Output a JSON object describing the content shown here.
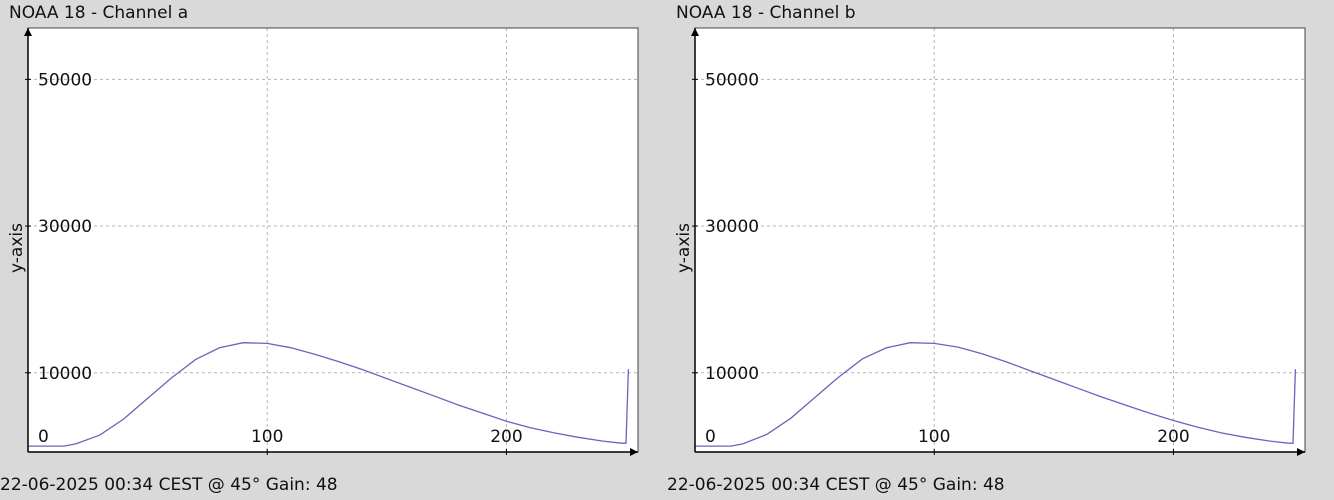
{
  "chart_data": [
    {
      "type": "line",
      "title": "NOAA 18 - Channel a",
      "ylabel": "y-axis",
      "xlabel": "",
      "footer": "22-06-2025 00:34 CEST @ 45° Gain: 48",
      "xlim": [
        0,
        255
      ],
      "ylim": [
        -800,
        57000
      ],
      "x_ticks": [
        100,
        200
      ],
      "x_tick_labels": [
        "100",
        "200"
      ],
      "y_ticks": [
        50000,
        30000,
        10000,
        0
      ],
      "y_tick_labels": [
        "50000",
        "30000",
        "10000",
        "0"
      ],
      "grid": true,
      "line_color": "#6666bb",
      "series": [
        {
          "x": [
            0,
            15,
            20,
            30,
            40,
            50,
            60,
            70,
            80,
            90,
            100,
            110,
            120,
            130,
            140,
            150,
            160,
            170,
            180,
            190,
            200,
            210,
            220,
            230,
            240,
            248,
            250,
            251
          ],
          "values": [
            0,
            0,
            300,
            1500,
            3700,
            6500,
            9300,
            11800,
            13400,
            14100,
            14000,
            13400,
            12500,
            11500,
            10400,
            9200,
            8000,
            6800,
            5600,
            4500,
            3400,
            2500,
            1800,
            1200,
            700,
            400,
            400,
            10500
          ]
        }
      ]
    },
    {
      "type": "line",
      "title": "NOAA 18 - Channel b",
      "ylabel": "y-axis",
      "xlabel": "",
      "footer": "22-06-2025 00:34 CEST @ 45° Gain: 48",
      "xlim": [
        0,
        255
      ],
      "ylim": [
        -800,
        57000
      ],
      "x_ticks": [
        100,
        200
      ],
      "x_tick_labels": [
        "100",
        "200"
      ],
      "y_ticks": [
        50000,
        30000,
        10000,
        0
      ],
      "y_tick_labels": [
        "50000",
        "30000",
        "10000",
        "0"
      ],
      "grid": true,
      "line_color": "#6666bb",
      "series": [
        {
          "x": [
            0,
            15,
            20,
            30,
            40,
            50,
            60,
            70,
            80,
            90,
            100,
            110,
            120,
            130,
            140,
            150,
            160,
            170,
            180,
            190,
            200,
            210,
            220,
            230,
            240,
            248,
            250,
            251
          ],
          "values": [
            0,
            0,
            300,
            1600,
            3800,
            6600,
            9400,
            11900,
            13400,
            14100,
            14000,
            13500,
            12600,
            11500,
            10300,
            9100,
            7900,
            6700,
            5600,
            4500,
            3500,
            2600,
            1800,
            1200,
            700,
            400,
            400,
            10500
          ]
        }
      ]
    }
  ]
}
